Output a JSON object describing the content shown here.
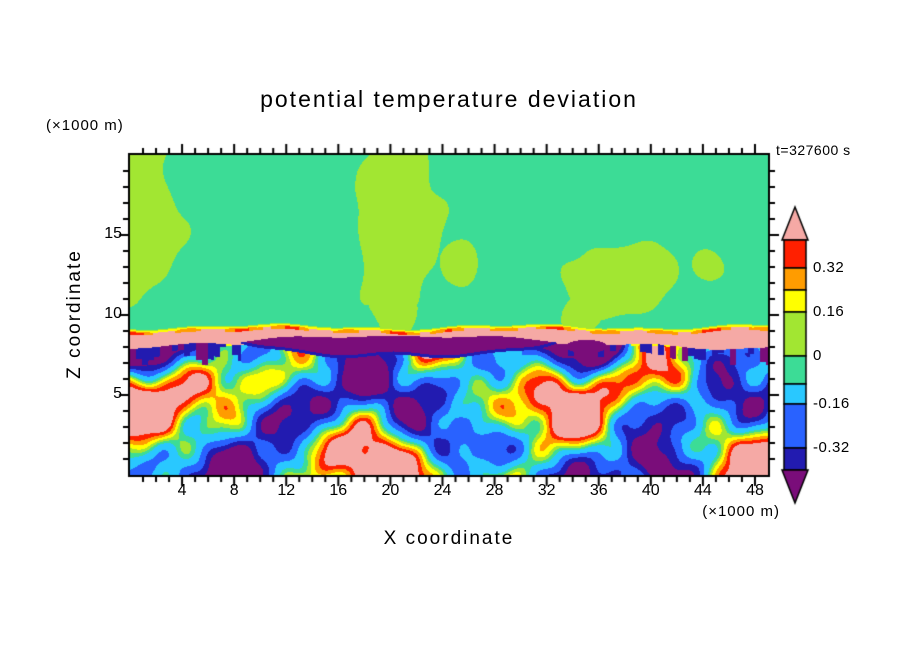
{
  "chart_data": {
    "type": "heatmap",
    "title": "potential temperature deviation",
    "timestamp": "t=327600 s",
    "xlabel": "X coordinate",
    "ylabel": "Z coordinate",
    "x_units_label": "(×1000 m)",
    "z_units_label": "(×1000 m)",
    "xlim": [
      0,
      49
    ],
    "zlim": [
      0,
      20
    ],
    "x_major_ticks": [
      4,
      8,
      12,
      16,
      20,
      24,
      28,
      32,
      36,
      40,
      44,
      48
    ],
    "x_minor_tick_step": 1,
    "z_major_ticks": [
      5,
      10,
      15
    ],
    "z_minor_tick_step": 1,
    "grid": false,
    "legend_position": "right-colorbar",
    "labeled_levels": [
      0.32,
      0.16,
      0,
      -0.16,
      -0.32
    ],
    "colorbar": {
      "over_color": "#f5a9a5",
      "under_color": "#7a0d7a",
      "bands": [
        {
          "color": "#ff2000",
          "label_below": "0.32"
        },
        {
          "color": "#ff9c00"
        },
        {
          "color": "#ffff00",
          "label_below": "0.16"
        },
        {
          "color": "#a2e632",
          "label_below": "0"
        },
        {
          "color": "#3cdc96"
        },
        {
          "color": "#29c8ff",
          "label_below": "-0.16"
        },
        {
          "color": "#2962ff",
          "label_below": "-0.32"
        },
        {
          "color": "#221bb0"
        }
      ]
    },
    "field_features": [
      "z ~ 9-20 km: near-zero deviation (green) with weak positive patches (yellow-green) near x~0-4, x~17-26 forming a column that reaches the top edge, and x~33-42",
      "z ~ 8-9 km: continuous warm band (pink, above highest contour) across the whole domain with thin compressed yellow/orange contour fringes along its top",
      "z ~ 7.5-8.5 km, x~8-33 and x~33-37: strong cold elongated anomaly (purple/dark blue, below lowest contour) with navy fringe and short cold 'drips' hanging below the band elsewhere",
      "z below 7.5 km: turbulent convective layer; warm plumes with yellow/orange/red rings and pink cores near x~11-13, 21-24, 26-31, 47-49 alternating with cold downdrafts (cyan/blue/navy/purple) near x~2-10, 17-19, 33-35, 39-46"
    ]
  }
}
